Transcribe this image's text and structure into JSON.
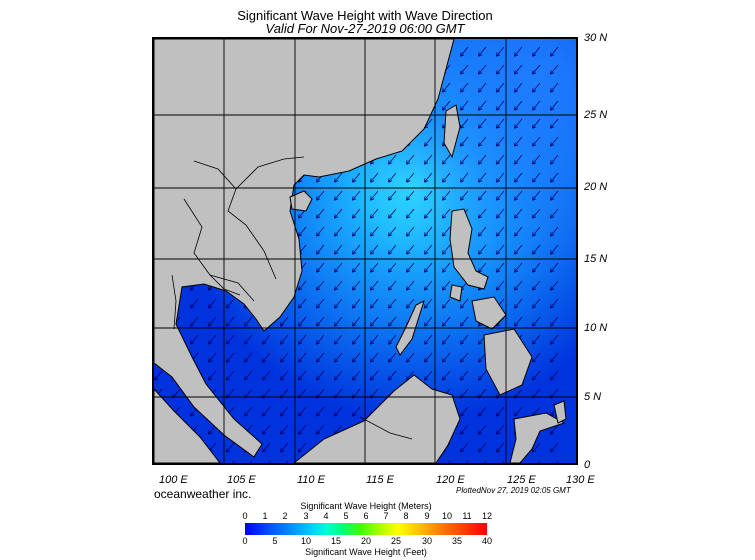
{
  "header": {
    "title": "Significant Wave Height with Wave Direction",
    "subtitle": "Valid For Nov-27-2019 06:00 GMT"
  },
  "map": {
    "lon_labels": [
      "100 E",
      "105 E",
      "110 E",
      "115 E",
      "120 E",
      "125 E",
      "130 E"
    ],
    "lat_labels": [
      "30 N",
      "25 N",
      "20 N",
      "15 N",
      "10 N",
      "5 N",
      "0"
    ],
    "wave_direction": "from northeast",
    "colors": {
      "land": "#c0c0c0",
      "sea_low": "#0033dd",
      "sea_high": "#33eeff"
    }
  },
  "footer": {
    "credit": "oceanweather inc.",
    "plotted": "PlottedNov 27, 2019 02:05 GMT"
  },
  "colorbar": {
    "label_top": "Significant Wave Height (Meters)",
    "label_bottom": "Significant Wave Height (Feet)",
    "meters": [
      "0",
      "1",
      "2",
      "3",
      "4",
      "5",
      "6",
      "7",
      "8",
      "9",
      "10",
      "11",
      "12"
    ],
    "feet": [
      "0",
      "5",
      "10",
      "15",
      "20",
      "25",
      "30",
      "35",
      "40"
    ]
  }
}
